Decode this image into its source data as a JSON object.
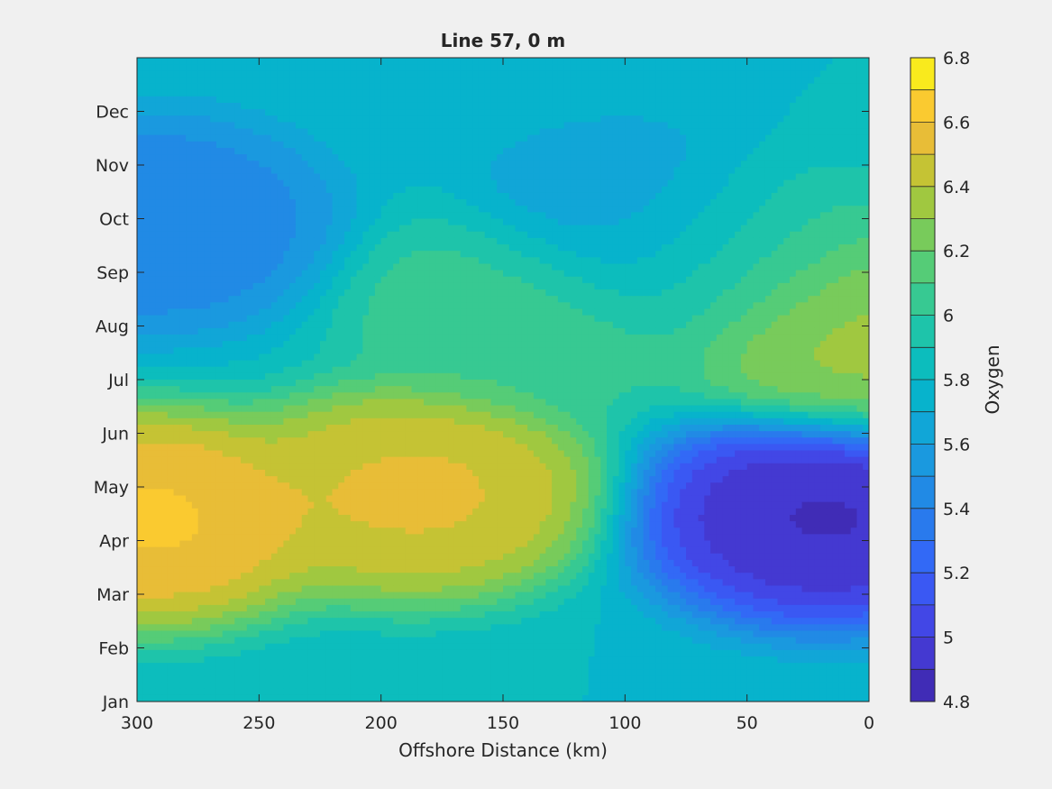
{
  "chart_data": {
    "type": "heatmap",
    "title": "Line 57, 0 m",
    "xlabel": "Offshore Distance (km)",
    "ylabel": "",
    "x_direction": "reversed",
    "xlim": [
      300,
      0
    ],
    "x_ticks": [
      300,
      250,
      200,
      150,
      100,
      50,
      0
    ],
    "ylim": [
      "Jan",
      "Jan"
    ],
    "y_ticks": [
      "Jan",
      "Feb",
      "Mar",
      "Apr",
      "May",
      "Jun",
      "Jul",
      "Aug",
      "Sep",
      "Oct",
      "Nov",
      "Dec"
    ],
    "colorbar": {
      "label": "Oxygen",
      "range": [
        4.8,
        6.8
      ],
      "ticks": [
        4.8,
        5,
        5.2,
        5.4,
        5.6,
        5.8,
        6,
        6.2,
        6.4,
        6.6,
        6.8
      ],
      "levels": [
        4.8,
        4.9,
        5.0,
        5.1,
        5.2,
        5.3,
        5.4,
        5.5,
        5.6,
        5.7,
        5.8,
        5.9,
        6.0,
        6.1,
        6.2,
        6.3,
        6.4,
        6.5,
        6.6,
        6.7,
        6.8
      ],
      "colormap": "parula"
    },
    "grid": false,
    "features": [
      {
        "x": 295,
        "month": 4.4,
        "value": 6.65,
        "label": "oxygen maximum (coastal-offshore edge)"
      },
      {
        "x": 185,
        "month": 4.9,
        "value": 6.55,
        "label": "secondary maximum"
      },
      {
        "x": 18,
        "month": 4.45,
        "value": 4.85,
        "label": "oxygen minimum (upwelling)"
      },
      {
        "x": 0,
        "month": 7.7,
        "value": 6.35,
        "label": "nearshore summer high"
      },
      {
        "x": 60,
        "month": 9.3,
        "value": 6.15,
        "label": "local high"
      },
      {
        "x": 140,
        "month": 8.3,
        "value": 6.1,
        "label": "local high"
      },
      {
        "x": 295,
        "month": 9.9,
        "value": 5.4,
        "label": "local low"
      },
      {
        "x": 90,
        "month": 9.7,
        "value": 5.5,
        "label": "local low"
      }
    ]
  }
}
